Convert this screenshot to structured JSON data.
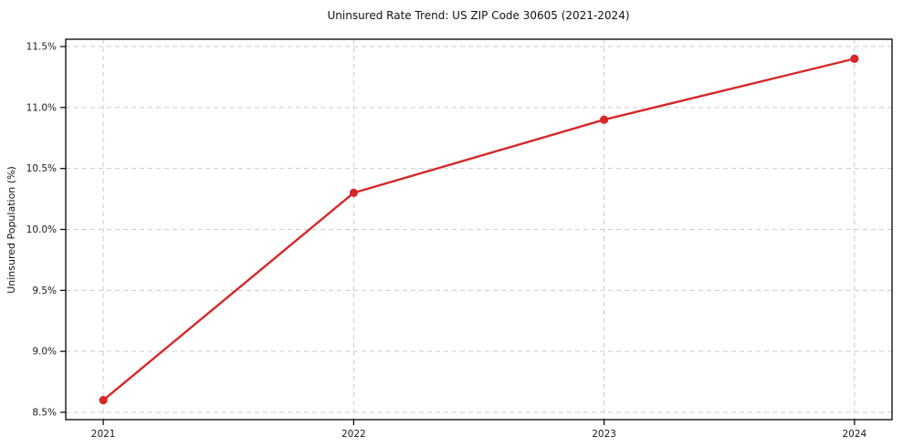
{
  "chart_data": {
    "type": "line",
    "title": "Uninsured Rate Trend: US ZIP Code 30605 (2021-2024)",
    "ylabel": "Uninsured Population (%)",
    "xlabel": "",
    "x": [
      2021,
      2022,
      2023,
      2024
    ],
    "xtick_labels": [
      "2021",
      "2022",
      "2023",
      "2024"
    ],
    "series": [
      {
        "name": "uninsured-rate",
        "values": [
          8.6,
          10.3,
          10.9,
          11.4
        ],
        "color": "#d62728",
        "marker": "circle",
        "line_width": 2.4,
        "marker_radius": 4.6
      }
    ],
    "yticks": [
      8.5,
      9.0,
      9.5,
      10.0,
      10.5,
      11.0,
      11.5
    ],
    "ytick_labels": [
      "8.5%",
      "9.0%",
      "9.5%",
      "10.0%",
      "10.5%",
      "11.0%",
      "11.5%"
    ],
    "xlim": [
      2020.85,
      2024.15
    ],
    "ylim": [
      8.44,
      11.56
    ],
    "grid": true,
    "grid_style": "dashed",
    "grid_color": "#cccccc",
    "spine_color": "#000000",
    "legend_position": "none"
  }
}
